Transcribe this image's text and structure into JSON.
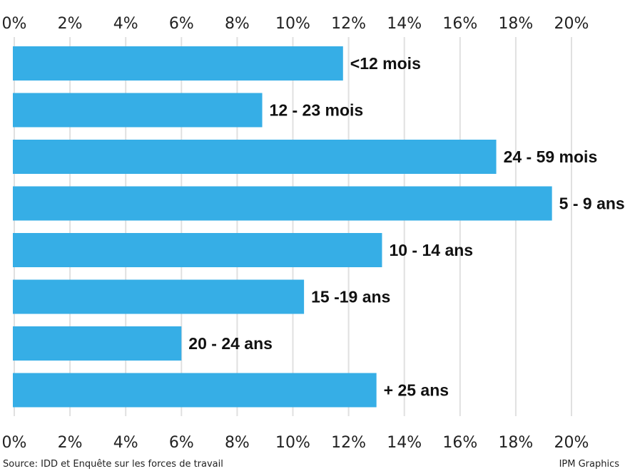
{
  "chart_data": {
    "type": "bar",
    "orientation": "horizontal",
    "categories": [
      "<12 mois",
      "12 - 23 mois",
      "24 - 59 mois",
      "5 - 9 ans",
      "10 - 14 ans",
      "15 -19 ans",
      "20 - 24 ans",
      "+ 25 ans"
    ],
    "values": [
      11.8,
      8.9,
      17.3,
      19.3,
      13.2,
      10.4,
      6.0,
      13.0
    ],
    "unit": "%",
    "xlim": [
      0,
      20
    ],
    "xticks": [
      "0%",
      "2%",
      "4%",
      "6%",
      "8%",
      "10%",
      "12%",
      "14%",
      "16%",
      "18%",
      "20%"
    ],
    "xaxis_labels_position": "top and bottom",
    "grid": "vertical",
    "bar_color": "#36aee6",
    "grid_color": "#e0e0e0",
    "title": "",
    "xlabel": "",
    "ylabel": ""
  },
  "footer": {
    "source": "Source: IDD et Enquête sur les forces de travail",
    "credit": "IPM Graphics"
  }
}
